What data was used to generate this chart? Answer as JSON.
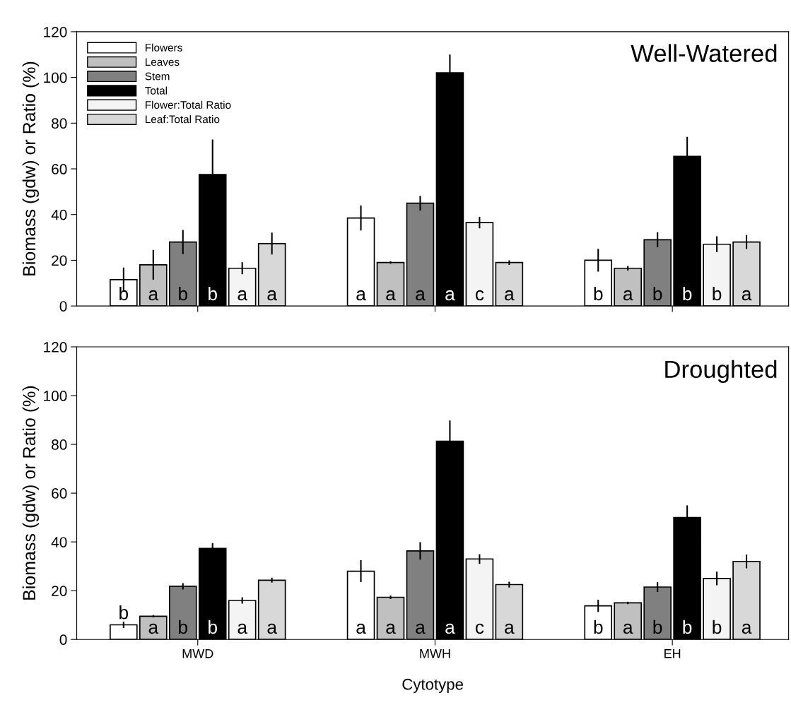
{
  "chart_data": [
    {
      "type": "bar",
      "title": "Well-Watered",
      "ylabel": "Biomass (gdw) or Ratio (%)",
      "categories": [
        null,
        null,
        null
      ],
      "ylim": [
        0,
        120
      ],
      "yticks": [
        0,
        20,
        40,
        60,
        80,
        100,
        120
      ],
      "legend": "top left",
      "grid": false,
      "series": [
        {
          "name": "Flowers",
          "color": "#ffffff",
          "values": [
            11.5,
            38.5,
            20
          ],
          "errors": [
            5.3,
            5.5,
            5
          ],
          "value_labels": [
            "b",
            "a",
            "b"
          ]
        },
        {
          "name": "Leaves",
          "color": "#c0c0c0",
          "values": [
            18,
            19,
            16.5
          ],
          "errors": [
            6.5,
            0.5,
            1
          ],
          "value_labels": [
            "a",
            "a",
            "a"
          ]
        },
        {
          "name": "Stem",
          "color": "#808080",
          "values": [
            28,
            45,
            29
          ],
          "errors": [
            5.3,
            3.2,
            3.3
          ],
          "value_labels": [
            "b",
            "a",
            "b"
          ]
        },
        {
          "name": "Total",
          "color": "#000000",
          "values": [
            57.5,
            102,
            65.5
          ],
          "errors": [
            15.3,
            8,
            8.5
          ],
          "value_labels": [
            "b",
            "a",
            "b"
          ]
        },
        {
          "name": "Flower:Total Ratio",
          "color": "#f4f4f4",
          "values": [
            16.5,
            36.5,
            27
          ],
          "errors": [
            2.6,
            2.5,
            3.5
          ],
          "value_labels": [
            "a",
            "c",
            "b"
          ]
        },
        {
          "name": "Leaf:Total Ratio",
          "color": "#d8d8d8",
          "values": [
            27.3,
            19,
            28
          ],
          "errors": [
            4.8,
            1,
            3
          ],
          "value_labels": [
            "a",
            "a",
            "a"
          ]
        }
      ]
    },
    {
      "type": "bar",
      "title": "Droughted",
      "ylabel": "Biomass (gdw) or Ratio (%)",
      "xlabel": "Cytotype",
      "categories": [
        "MWD",
        "MWH",
        "EH"
      ],
      "ylim": [
        0,
        120
      ],
      "yticks": [
        0,
        20,
        40,
        60,
        80,
        100,
        120
      ],
      "grid": false,
      "series": [
        {
          "color": "#ffffff",
          "values": [
            6,
            28,
            13.8
          ],
          "errors": [
            1.3,
            4.5,
            2.5
          ],
          "value_labels": [
            "b",
            "a",
            "b"
          ]
        },
        {
          "color": "#c0c0c0",
          "values": [
            9.5,
            17.3,
            15
          ],
          "errors": [
            0.5,
            0.7,
            0.5
          ],
          "value_labels": [
            "a",
            "a",
            "a"
          ]
        },
        {
          "color": "#808080",
          "values": [
            21.8,
            36.3,
            21.5
          ],
          "errors": [
            1.3,
            3.6,
            2
          ],
          "value_labels": [
            "b",
            "a",
            "b"
          ]
        },
        {
          "color": "#000000",
          "values": [
            37.3,
            81.3,
            50
          ],
          "errors": [
            2.2,
            8.5,
            5
          ],
          "value_labels": [
            "b",
            "a",
            "b"
          ]
        },
        {
          "color": "#f4f4f4",
          "values": [
            16,
            33,
            25
          ],
          "errors": [
            1.3,
            2,
            2.8
          ],
          "value_labels": [
            "a",
            "c",
            "b"
          ]
        },
        {
          "color": "#d8d8d8",
          "values": [
            24.3,
            22.5,
            32
          ],
          "errors": [
            1,
            1.2,
            2.8
          ],
          "value_labels": [
            "a",
            "a",
            "a"
          ]
        }
      ]
    }
  ]
}
